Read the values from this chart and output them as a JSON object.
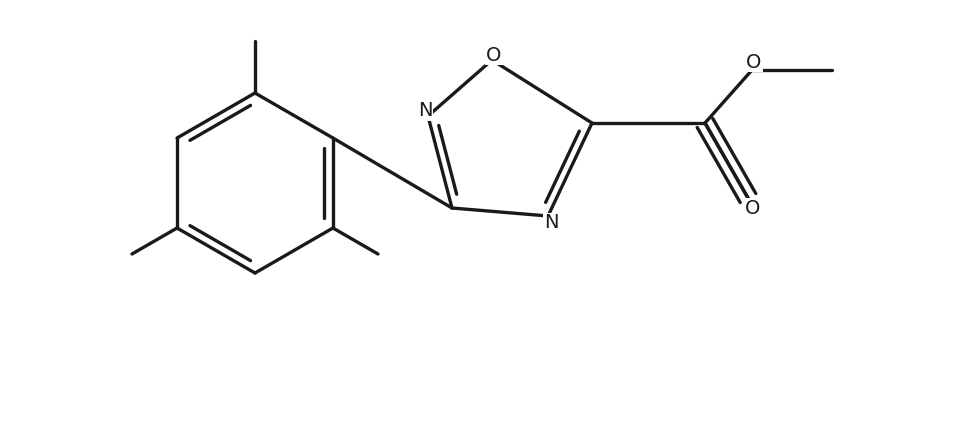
{
  "bg_color": "#ffffff",
  "line_color": "#1a1a1a",
  "line_width": 2.4,
  "figsize": [
    9.71,
    4.38
  ],
  "dpi": 100,
  "xlim": [
    0,
    9.71
  ],
  "ylim": [
    0,
    4.38
  ]
}
